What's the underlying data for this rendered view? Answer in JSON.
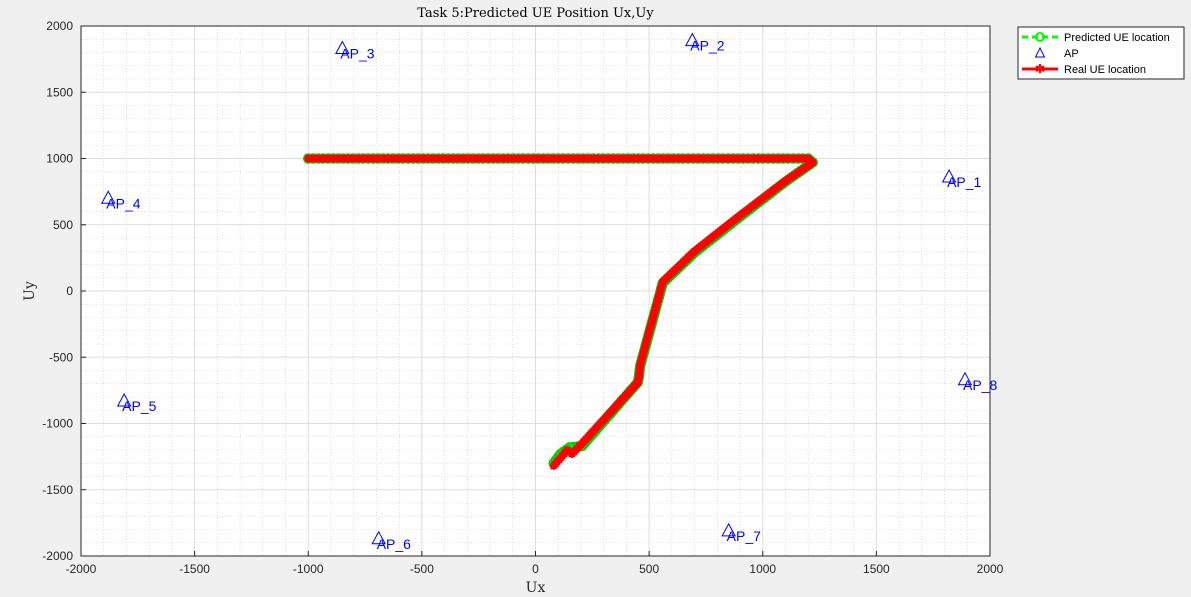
{
  "chart_data": {
    "type": "scatter",
    "title": "Task 5:Predicted UE Position Ux,Uy",
    "xlabel": "Ux",
    "ylabel": "Uy",
    "xlim": [
      -2000,
      2000
    ],
    "ylim": [
      -2000,
      2000
    ],
    "xticks": [
      -2000,
      -1500,
      -1000,
      -500,
      0,
      500,
      1000,
      1500,
      2000
    ],
    "yticks": [
      -2000,
      -1500,
      -1000,
      -500,
      0,
      500,
      1000,
      1500,
      2000
    ],
    "grid": true,
    "minor_grid": true,
    "legend_position": "outside-top-right",
    "legend": [
      {
        "label": "Predicted UE location",
        "color": "#00ff00",
        "marker": "circle",
        "line": "dashed"
      },
      {
        "label": "AP",
        "color": "#0000ff",
        "marker": "triangle",
        "line": "none"
      },
      {
        "label": "Real UE location",
        "color": "#ff0000",
        "marker": "star",
        "line": "solid"
      }
    ],
    "access_points": [
      {
        "label": "AP_1",
        "x": 1820,
        "y": 860
      },
      {
        "label": "AP_2",
        "x": 690,
        "y": 1890
      },
      {
        "label": "AP_3",
        "x": -850,
        "y": 1830
      },
      {
        "label": "AP_4",
        "x": -1880,
        "y": 700
      },
      {
        "label": "AP_5",
        "x": -1810,
        "y": -830
      },
      {
        "label": "AP_6",
        "x": -690,
        "y": -1870
      },
      {
        "label": "AP_7",
        "x": 850,
        "y": -1810
      },
      {
        "label": "AP_8",
        "x": 1890,
        "y": -670
      }
    ],
    "real_path": [
      [
        -1000,
        1000
      ],
      [
        1200,
        1000
      ],
      [
        1220,
        970
      ],
      [
        1100,
        830
      ],
      [
        900,
        570
      ],
      [
        700,
        300
      ],
      [
        560,
        70
      ],
      [
        460,
        -560
      ],
      [
        455,
        -650
      ],
      [
        450,
        -690
      ],
      [
        200,
        -1160
      ],
      [
        160,
        -1230
      ],
      [
        140,
        -1200
      ],
      [
        80,
        -1320
      ]
    ],
    "predicted_path": [
      [
        -1000,
        1000
      ],
      [
        1200,
        1000
      ],
      [
        1220,
        970
      ],
      [
        1100,
        825
      ],
      [
        900,
        560
      ],
      [
        700,
        290
      ],
      [
        560,
        60
      ],
      [
        460,
        -570
      ],
      [
        455,
        -650
      ],
      [
        450,
        -690
      ],
      [
        205,
        -1170
      ],
      [
        150,
        -1180
      ],
      [
        110,
        -1230
      ],
      [
        80,
        -1300
      ]
    ]
  }
}
